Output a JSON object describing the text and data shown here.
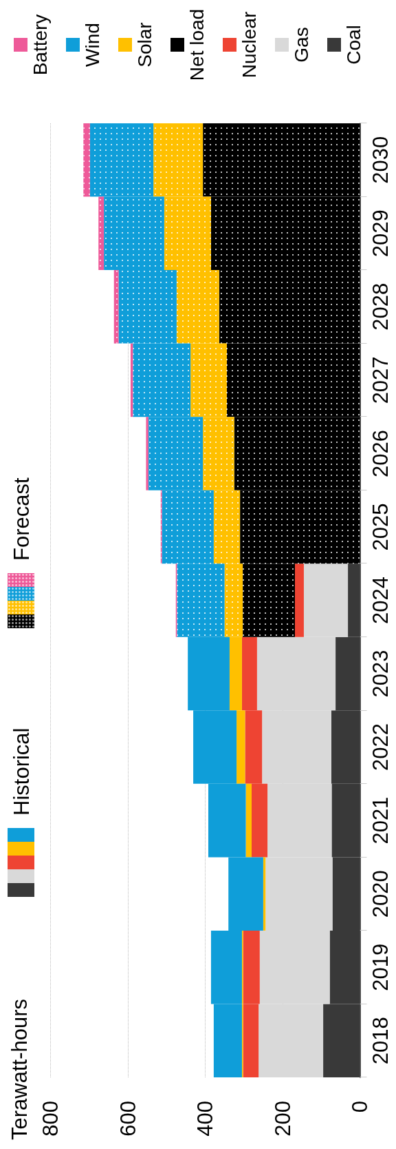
{
  "chart_data": {
    "type": "bar",
    "orientation": "horizontal",
    "title": "Terawatt-hours",
    "categories": [
      "2030",
      "2029",
      "2028",
      "2027",
      "2026",
      "2025",
      "2024",
      "2023",
      "2022",
      "2021",
      "2020",
      "2019",
      "2018"
    ],
    "series": [
      {
        "name": "Coal",
        "color": "#393939",
        "values": [
          null,
          null,
          null,
          null,
          null,
          null,
          31,
          63,
          74,
          73,
          71,
          78,
          95
        ]
      },
      {
        "name": "Gas",
        "color": "#d9d9d9",
        "values": [
          null,
          null,
          null,
          null,
          null,
          null,
          114,
          203,
          179,
          166,
          173,
          181,
          167
        ]
      },
      {
        "name": "Nuclear",
        "color": "#ee4433",
        "values": [
          null,
          null,
          null,
          null,
          null,
          null,
          23,
          39,
          44,
          41,
          0,
          43,
          40
        ]
      },
      {
        "name": "Net load",
        "color": "#000000",
        "values": [
          406,
          385,
          364,
          344,
          325,
          310,
          135,
          null,
          null,
          null,
          null,
          null,
          null
        ]
      },
      {
        "name": "Solar",
        "color": "#ffc000",
        "values": [
          null,
          null,
          null,
          null,
          null,
          null,
          null,
          32,
          22,
          15,
          6,
          3,
          3
        ]
      },
      {
        "color": "#ffc000",
        "values": [
          128,
          121,
          110,
          94,
          81,
          68,
          47,
          null,
          null,
          null,
          null,
          null,
          null
        ]
      },
      {
        "name": "Wind",
        "color": "#0f9ed9",
        "values": [
          null,
          null,
          null,
          null,
          null,
          null,
          null,
          108,
          112,
          97,
          90,
          80,
          73
        ]
      },
      {
        "color": "#0f9ed9",
        "values": [
          164,
          156,
          150,
          149,
          141,
          134,
          123,
          null,
          null,
          null,
          null,
          null,
          null
        ]
      },
      {
        "name": "Battery",
        "color": "#ee5a99",
        "values": [
          17,
          14,
          12,
          6,
          6,
          3,
          3,
          null,
          null,
          null,
          null,
          null,
          null
        ]
      }
    ],
    "stacked": true,
    "xlim": [
      800,
      0
    ],
    "xticks": [
      800,
      600,
      400,
      200,
      0
    ],
    "grid": "x",
    "legend": "top",
    "annotations": [
      "Historical",
      "Forecast"
    ]
  }
}
